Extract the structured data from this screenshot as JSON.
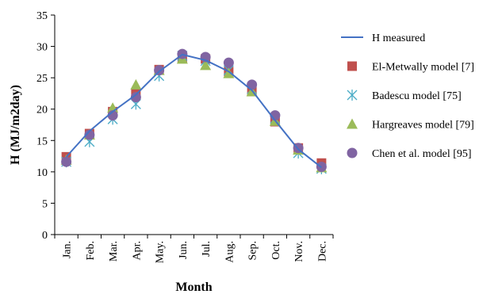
{
  "chart_data": {
    "type": "line",
    "title": "",
    "xlabel": "Month",
    "ylabel": "H (MJ/m2day)",
    "categories": [
      "Jan.",
      "Feb.",
      "Mar.",
      "Apr.",
      "May.",
      "Jun.",
      "Jul.",
      "Aug.",
      "Sep.",
      "Oct.",
      "Nov.",
      "Dec."
    ],
    "ylim": [
      0,
      35
    ],
    "yticks": [
      0,
      5,
      10,
      15,
      20,
      25,
      30,
      35
    ],
    "grid": false,
    "legend_position": "right",
    "series": [
      {
        "name": "H measured",
        "kind": "line",
        "color": "#4472C4",
        "values": [
          12.4,
          16.5,
          19.6,
          22.3,
          26.0,
          28.7,
          27.8,
          26.0,
          23.0,
          18.2,
          13.6,
          10.7
        ]
      },
      {
        "name": "El-Metwally model [7]",
        "kind": "square",
        "color": "#C0504D",
        "values": [
          12.4,
          16.1,
          19.6,
          22.5,
          26.3,
          28.2,
          28.0,
          26.0,
          22.8,
          18.0,
          13.8,
          11.4
        ]
      },
      {
        "name": "Badescu model [75]",
        "kind": "asterisk",
        "color": "#4BACC6",
        "values": [
          11.6,
          14.8,
          18.4,
          20.8,
          25.3,
          28.5,
          27.7,
          26.2,
          23.2,
          18.5,
          13.0,
          10.5
        ]
      },
      {
        "name": "Hargreaves model [79]",
        "kind": "triangle",
        "color": "#9BBB59",
        "values": [
          11.9,
          15.9,
          20.2,
          23.9,
          26.2,
          28.0,
          27.0,
          25.7,
          22.8,
          18.1,
          13.5,
          10.7
        ]
      },
      {
        "name": "Chen et al. model [95]",
        "kind": "circle",
        "color": "#8064A2",
        "values": [
          11.6,
          15.9,
          19.0,
          21.9,
          26.2,
          28.8,
          28.3,
          27.4,
          23.9,
          19.0,
          13.8,
          10.8
        ]
      }
    ]
  }
}
